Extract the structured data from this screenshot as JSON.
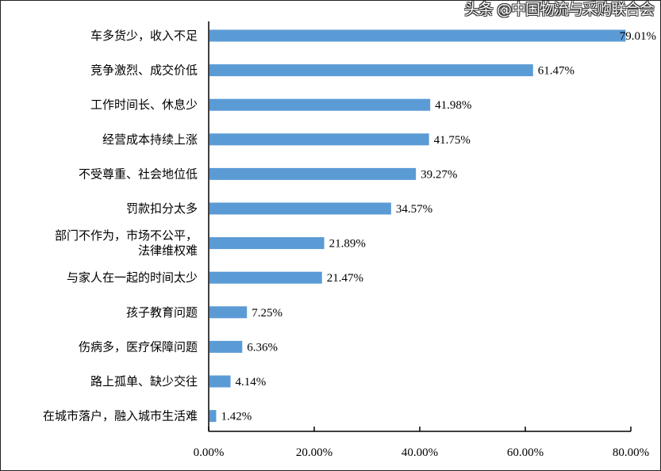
{
  "chart_data": {
    "type": "bar",
    "orientation": "horizontal",
    "categories": [
      [
        "车多货少，收入不足"
      ],
      [
        "竞争激烈、成交价低"
      ],
      [
        "工作时间长、休息少"
      ],
      [
        "经营成本持续上涨"
      ],
      [
        "不受尊重、社会地位低"
      ],
      [
        "罚款扣分太多"
      ],
      [
        "部门不作为，市场不公平，",
        "法律维权难"
      ],
      [
        "与家人在一起的时间太少"
      ],
      [
        "孩子教育问题"
      ],
      [
        "伤病多，医疗保障问题"
      ],
      [
        "路上孤单、缺少交往"
      ],
      [
        "在城市落户，融入城市生活难"
      ]
    ],
    "values": [
      79.01,
      61.47,
      41.98,
      41.75,
      39.27,
      34.57,
      21.89,
      21.47,
      7.25,
      6.36,
      4.14,
      1.42
    ],
    "data_labels": [
      "79.01%",
      "61.47%",
      "41.98%",
      "41.75%",
      "39.27%",
      "34.57%",
      "21.89%",
      "21.47%",
      "7.25%",
      "6.36%",
      "4.14%",
      "1.42%"
    ],
    "xlim": [
      0,
      80
    ],
    "xticks": [
      0,
      20,
      40,
      60,
      80
    ],
    "xtick_labels": [
      "0.00%",
      "20.00%",
      "40.00%",
      "60.00%",
      "80.00%"
    ],
    "bar_color": "#5B9BD5",
    "grid": false,
    "legend": "none"
  },
  "watermark": "头条 @中国物流与采购联合会"
}
